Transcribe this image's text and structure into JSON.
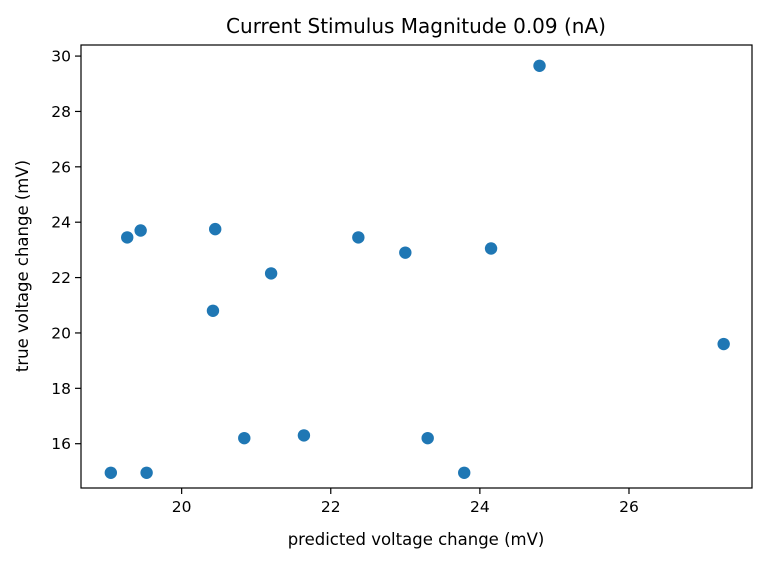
{
  "chart_data": {
    "type": "scatter",
    "title": "Current Stimulus Magnitude 0.09 (nA)",
    "xlabel": "predicted voltage change (mV)",
    "ylabel": "true voltage change (mV)",
    "xlim": [
      18.65,
      27.65
    ],
    "ylim": [
      14.4,
      30.4
    ],
    "xticks": [
      20,
      22,
      24,
      26
    ],
    "yticks": [
      16,
      18,
      20,
      22,
      24,
      26,
      28,
      30
    ],
    "x_tick_labels": [
      "20",
      "22",
      "24",
      "26"
    ],
    "y_tick_labels": [
      "16",
      "18",
      "20",
      "22",
      "24",
      "26",
      "28",
      "30"
    ],
    "grid": false,
    "marker_color": "#1f77b4",
    "series": [
      {
        "name": "points",
        "x": [
          19.05,
          19.27,
          19.45,
          19.53,
          20.42,
          20.45,
          20.84,
          21.2,
          21.64,
          22.37,
          23.0,
          23.3,
          23.79,
          24.15,
          24.8,
          27.27
        ],
        "y": [
          14.95,
          23.45,
          23.7,
          14.95,
          20.8,
          23.75,
          16.2,
          22.15,
          16.3,
          23.45,
          22.9,
          16.2,
          14.95,
          23.05,
          29.65,
          19.6
        ]
      }
    ]
  }
}
